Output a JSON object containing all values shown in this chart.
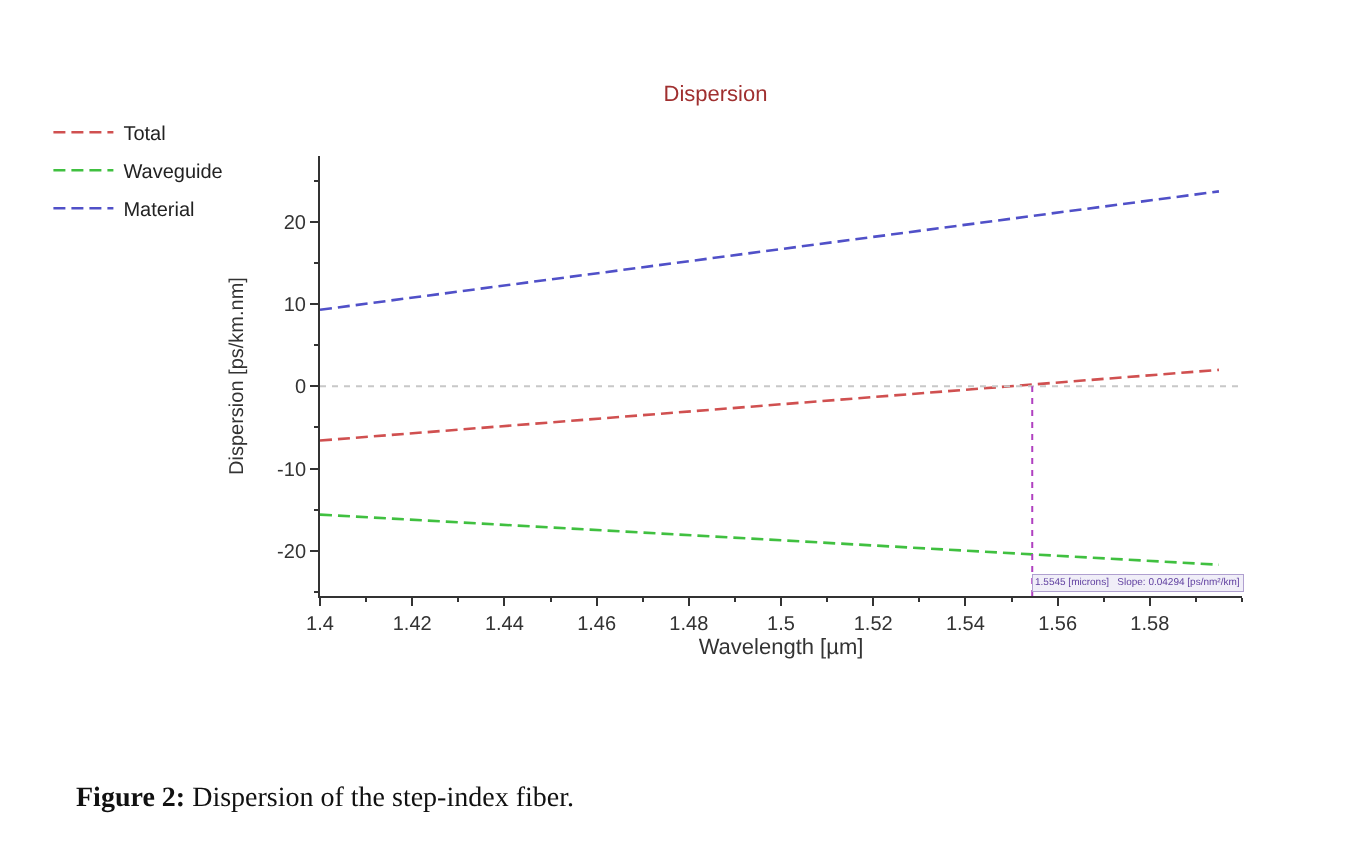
{
  "chart_data": {
    "type": "line",
    "title": "Dispersion",
    "xlabel": "Wavelength [µm]",
    "ylabel": "Dispersion [ps/km.nm]",
    "x": [
      1.4,
      1.595
    ],
    "series": [
      {
        "name": "Total",
        "color": "#d05050",
        "values": [
          -6.6,
          2.0
        ]
      },
      {
        "name": "Waveguide",
        "color": "#40c040",
        "values": [
          -15.6,
          -21.7
        ]
      },
      {
        "name": "Material",
        "color": "#5050c8",
        "values": [
          9.3,
          23.7
        ]
      }
    ],
    "xlim": [
      1.4,
      1.6
    ],
    "ylim": [
      -25.5,
      28
    ],
    "xticks": [
      1.4,
      1.42,
      1.44,
      1.46,
      1.48,
      1.5,
      1.52,
      1.54,
      1.56,
      1.58
    ],
    "yticks": [
      -20,
      -10,
      0,
      10,
      20
    ],
    "ref_lines": [
      {
        "axis": "y",
        "value": 0,
        "color": "#c8c8c8",
        "line_style": "dotted"
      },
      {
        "axis": "x",
        "value": 1.5545,
        "color": "#b040c0",
        "line_style": "dotted",
        "label": "1.5545 [microns]   Slope: 0.04294 [ps/nm²/km]"
      }
    ],
    "line_style": "dashed",
    "marker": "none",
    "legend": "top left",
    "annotations": [
      "Figure 2: Dispersion of the step-index fiber."
    ]
  }
}
